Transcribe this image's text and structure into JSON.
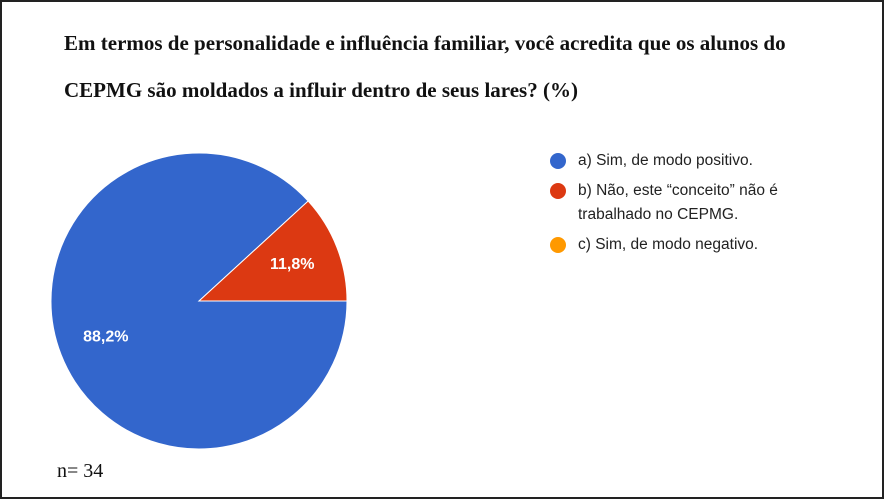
{
  "chart_data": {
    "type": "pie",
    "title": "Em termos de personalidade e influência familiar, você acredita que os alunos do CEPMG são moldados a influir dentro de seus lares? (%)",
    "categories": [
      "a) Sim, de modo positivo.",
      "b) Não, este “conceito” não é trabalhado no CEPMG.",
      "c) Sim, de modo negativo."
    ],
    "values": [
      88.2,
      11.8,
      0
    ],
    "value_labels": [
      "88,2%",
      "11,8%",
      null
    ],
    "colors": [
      "#3366cc",
      "#dc3912",
      "#ff9900"
    ],
    "legend": "right",
    "annotation": "n= 34"
  }
}
